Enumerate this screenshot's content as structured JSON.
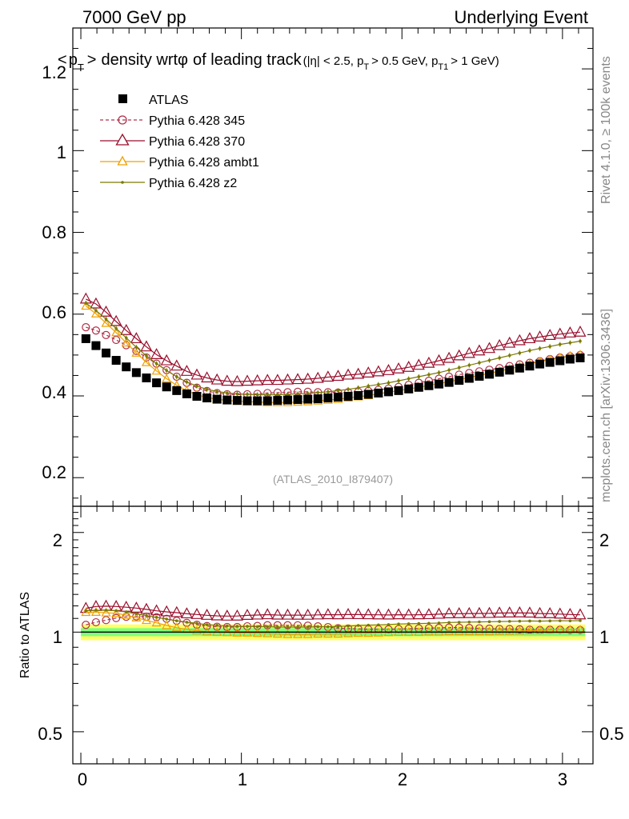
{
  "header": {
    "left": "7000 GeV pp",
    "right": "Underlying Event"
  },
  "side_labels": {
    "rivet": "Rivet 4.1.0, ≥ 100k events",
    "mcplots": "mcplots.cern.ch [arXiv:1306.3436]"
  },
  "colors": {
    "atlas": "#000000",
    "p345": "#b0304a",
    "p370": "#9a0f2c",
    "ambt1": "#f0a000",
    "z2": "#7a7a00",
    "band_green": "#7fff7f",
    "band_yellow": "#ffff66"
  },
  "chart_data": {
    "type": "scatter",
    "title_parts": {
      "lt": "<",
      "p": "p",
      "p_sub": "T",
      "gt": ">",
      "rest": "density wrt",
      "phi": "φ",
      "rest2": "of leading track",
      "cut1": "(|η| < 2.5, p",
      "cut1_sub": "T",
      "cut2": "> 0.5 GeV, p",
      "cut2_sub": "T1",
      "cut3": "> 1 GeV)"
    },
    "watermark": "(ATLAS_2010_I879407)",
    "ratio_ylabel": "Ratio to ATLAS",
    "xlim": [
      -0.05,
      3.19
    ],
    "ylim": [
      0.13,
      1.3
    ],
    "ratio_ylim": [
      0.4,
      2.4
    ],
    "x_ticks": [
      "0",
      "1",
      "2",
      "3"
    ],
    "y_ticks": [
      "0.2",
      "0.4",
      "0.6",
      "0.8",
      "1",
      "1.2"
    ],
    "ratio_ticks": [
      "0.5",
      "1",
      "2"
    ],
    "legend": {
      "atlas": "ATLAS",
      "p345": "Pythia 6.428 345",
      "p370": "Pythia 6.428 370",
      "ambt1": "Pythia 6.428 ambt1",
      "z2": "Pythia 6.428 z2"
    },
    "x": [
      0.0314,
      0.0942,
      0.157,
      0.2199,
      0.2827,
      0.3456,
      0.4084,
      0.4712,
      0.5341,
      0.5969,
      0.6597,
      0.7226,
      0.7854,
      0.8482,
      0.9111,
      0.9739,
      1.0367,
      1.0996,
      1.1624,
      1.2252,
      1.2881,
      1.3509,
      1.4137,
      1.4765,
      1.5394,
      1.6022,
      1.665,
      1.7279,
      1.7907,
      1.8535,
      1.9164,
      1.9792,
      2.042,
      2.1049,
      2.1677,
      2.2305,
      2.2934,
      2.3562,
      2.419,
      2.4819,
      2.5447,
      2.6075,
      2.6704,
      2.7332,
      2.796,
      2.8588,
      2.9217,
      2.9845,
      3.0473,
      3.1102
    ],
    "series": [
      {
        "name": "ATLAS",
        "values": [
          0.54,
          0.523,
          0.505,
          0.487,
          0.471,
          0.457,
          0.444,
          0.432,
          0.422,
          0.413,
          0.405,
          0.399,
          0.395,
          0.392,
          0.39,
          0.389,
          0.388,
          0.388,
          0.388,
          0.389,
          0.39,
          0.391,
          0.392,
          0.393,
          0.395,
          0.397,
          0.399,
          0.401,
          0.404,
          0.407,
          0.41,
          0.413,
          0.417,
          0.421,
          0.425,
          0.429,
          0.433,
          0.438,
          0.443,
          0.448,
          0.453,
          0.458,
          0.463,
          0.468,
          0.473,
          0.478,
          0.482,
          0.486,
          0.49,
          0.493
        ]
      },
      {
        "name": "Pythia 6.428 345",
        "values": [
          0.568,
          0.56,
          0.549,
          0.537,
          0.524,
          0.51,
          0.494,
          0.479,
          0.463,
          0.447,
          0.432,
          0.42,
          0.412,
          0.407,
          0.404,
          0.403,
          0.404,
          0.405,
          0.407,
          0.408,
          0.409,
          0.41,
          0.41,
          0.409,
          0.409,
          0.408,
          0.409,
          0.41,
          0.412,
          0.415,
          0.418,
          0.422,
          0.427,
          0.432,
          0.437,
          0.442,
          0.447,
          0.452,
          0.456,
          0.46,
          0.464,
          0.468,
          0.473,
          0.477,
          0.481,
          0.485,
          0.49,
          0.494,
          0.497,
          0.5
        ]
      },
      {
        "name": "Pythia 6.428 370",
        "values": [
          0.637,
          0.625,
          0.605,
          0.582,
          0.56,
          0.54,
          0.52,
          0.501,
          0.486,
          0.473,
          0.46,
          0.451,
          0.444,
          0.439,
          0.436,
          0.435,
          0.436,
          0.437,
          0.438,
          0.438,
          0.439,
          0.44,
          0.441,
          0.443,
          0.446,
          0.448,
          0.451,
          0.453,
          0.456,
          0.459,
          0.462,
          0.466,
          0.47,
          0.475,
          0.48,
          0.486,
          0.492,
          0.498,
          0.504,
          0.51,
          0.516,
          0.523,
          0.529,
          0.535,
          0.54,
          0.544,
          0.548,
          0.551,
          0.554,
          0.556
        ]
      },
      {
        "name": "Pythia 6.428 ambt1",
        "values": [
          0.62,
          0.601,
          0.578,
          0.555,
          0.53,
          0.505,
          0.482,
          0.461,
          0.442,
          0.426,
          0.413,
          0.403,
          0.396,
          0.392,
          0.389,
          0.387,
          0.386,
          0.385,
          0.384,
          0.384,
          0.384,
          0.385,
          0.386,
          0.388,
          0.39,
          0.392,
          0.395,
          0.398,
          0.401,
          0.405,
          0.409,
          0.413,
          0.417,
          0.421,
          0.426,
          0.43,
          0.435,
          0.44,
          0.445,
          0.45,
          0.455,
          0.461,
          0.466,
          0.472,
          0.478,
          0.484,
          0.489,
          0.494,
          0.498,
          0.501
        ]
      },
      {
        "name": "Pythia 6.428 z2",
        "values": [
          0.627,
          0.609,
          0.588,
          0.565,
          0.542,
          0.519,
          0.498,
          0.479,
          0.462,
          0.447,
          0.434,
          0.424,
          0.416,
          0.411,
          0.407,
          0.405,
          0.404,
          0.403,
          0.403,
          0.403,
          0.404,
          0.405,
          0.406,
          0.408,
          0.41,
          0.413,
          0.416,
          0.42,
          0.424,
          0.428,
          0.432,
          0.437,
          0.442,
          0.447,
          0.452,
          0.457,
          0.463,
          0.469,
          0.475,
          0.481,
          0.487,
          0.493,
          0.499,
          0.505,
          0.511,
          0.516,
          0.521,
          0.526,
          0.53,
          0.534
        ]
      }
    ]
  }
}
